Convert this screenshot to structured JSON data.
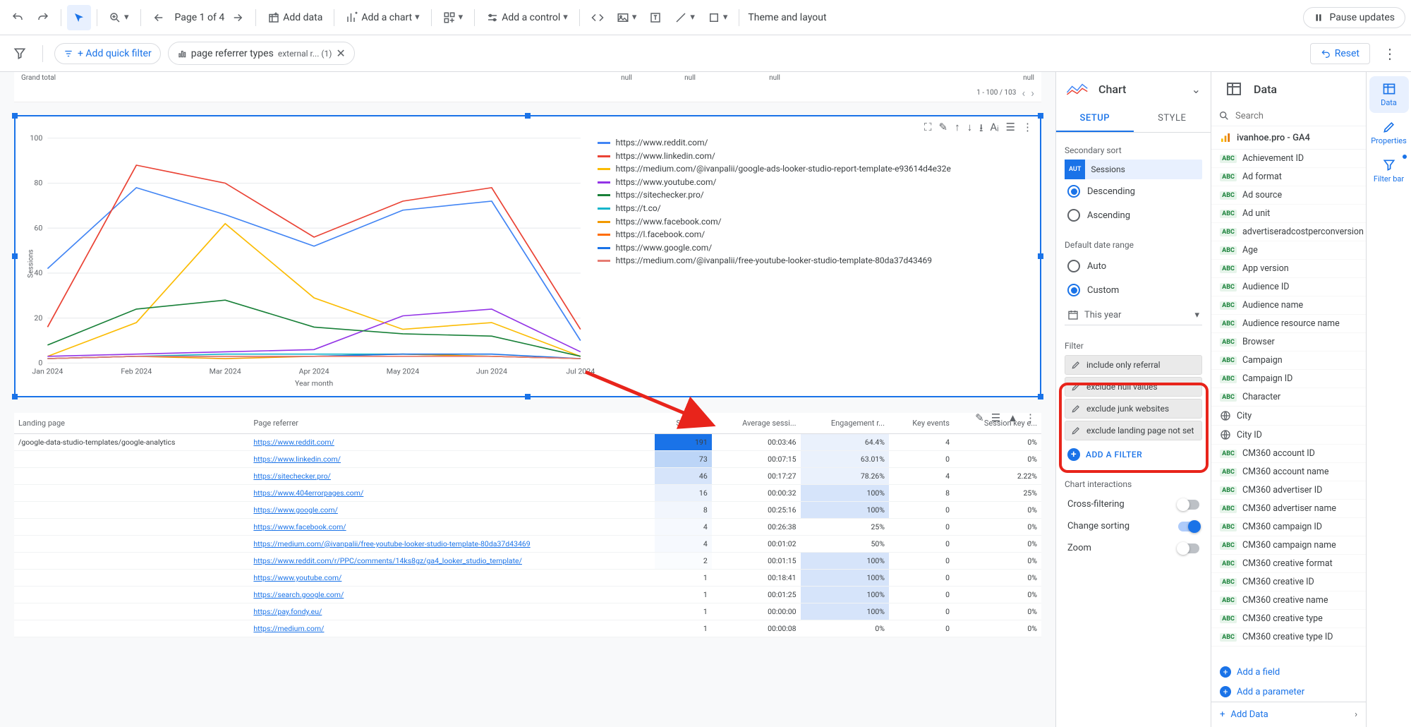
{
  "toolbar": {
    "page_label": "Page 1 of 4",
    "add_data": "Add data",
    "add_chart": "Add a chart",
    "add_control": "Add a control",
    "theme_layout": "Theme and layout",
    "pause_updates": "Pause updates"
  },
  "filter_bar": {
    "add_quick_filter": "+ Add quick filter",
    "active_filter_label": "page referrer types",
    "active_filter_suffix": "external r... (1)",
    "reset": "Reset"
  },
  "canvas": {
    "grand_total": "Grand total",
    "null_text": "null",
    "pagination": "1 - 100 / 103"
  },
  "chart": {
    "type": "line",
    "y_label": "Sessions",
    "x_label": "Year month",
    "x_categories": [
      "Jan 2024",
      "Feb 2024",
      "Mar 2024",
      "Apr 2024",
      "May 2024",
      "Jun 2024",
      "Jul 2024"
    ],
    "y_min": 0,
    "y_max": 100,
    "y_step": 20,
    "grid_color": "#e8eaed",
    "series": [
      {
        "color": "#4285f4",
        "label": "https://www.reddit.com/",
        "values": [
          42,
          78,
          66,
          52,
          68,
          72,
          10
        ]
      },
      {
        "color": "#ea4335",
        "label": "https://www.linkedin.com/",
        "values": [
          16,
          88,
          80,
          56,
          72,
          78,
          15
        ]
      },
      {
        "color": "#fbbc04",
        "label": "https://medium.com/@ivanpalii/google-ads-looker-studio-report-template-e93614d4e32e",
        "values": [
          3,
          18,
          62,
          29,
          15,
          18,
          3
        ]
      },
      {
        "color": "#9334e6",
        "label": "https://www.youtube.com/",
        "values": [
          3,
          4,
          5,
          6,
          21,
          24,
          5
        ]
      },
      {
        "color": "#188038",
        "label": "https://sitechecker.pro/",
        "values": [
          8,
          24,
          28,
          16,
          13,
          12,
          3
        ]
      },
      {
        "color": "#12b5cb",
        "label": "https://t.co/",
        "values": [
          2,
          3,
          4,
          4,
          4,
          3,
          2
        ]
      },
      {
        "color": "#f29900",
        "label": "https://www.facebook.com/",
        "values": [
          2,
          3,
          2,
          3,
          4,
          3,
          2
        ]
      },
      {
        "color": "#ff6d01",
        "label": "https://l.facebook.com/",
        "values": [
          2,
          3,
          3,
          3,
          3,
          3,
          2
        ]
      },
      {
        "color": "#1a73e8",
        "label": "https://www.google.com/",
        "values": [
          2,
          3,
          3,
          3,
          4,
          4,
          2
        ]
      },
      {
        "color": "#e67c73",
        "label": "https://medium.com/@ivanpalii/free-youtube-looker-studio-template-80da37d43469",
        "values": [
          2,
          3,
          3,
          3,
          3,
          3,
          2
        ]
      }
    ]
  },
  "table": {
    "columns": [
      "Landing page",
      "Page referrer",
      "Sessions",
      "Average sessi...",
      "Engagement r...",
      "Key events",
      "Session key e..."
    ],
    "landing_page_value": "/google-data-studio-templates/google-analytics",
    "rows": [
      {
        "ref": "https://www.reddit.com/",
        "sessions": 191,
        "avg": "00:03:46",
        "eng": "64.4%",
        "kev": 4,
        "ske": "0%",
        "heat": "#1a73e8"
      },
      {
        "ref": "https://www.linkedin.com/",
        "sessions": 73,
        "avg": "00:07:15",
        "eng": "63.01%",
        "kev": 0,
        "ske": "0%",
        "heat": "#bcd5f7"
      },
      {
        "ref": "https://sitechecker.pro/",
        "sessions": 46,
        "avg": "00:17:27",
        "eng": "78.26%",
        "kev": 4,
        "ske": "2.22%",
        "heat": "#d6e4fa"
      },
      {
        "ref": "https://www.404errorpages.com/",
        "sessions": 16,
        "avg": "00:00:32",
        "eng": "100%",
        "kev": 8,
        "ske": "25%",
        "heat": "#eaf1fc"
      },
      {
        "ref": "https://www.google.com/",
        "sessions": 8,
        "avg": "00:25:16",
        "eng": "100%",
        "kev": 0,
        "ske": "0%",
        "heat": "#f2f6fd"
      },
      {
        "ref": "https://www.facebook.com/",
        "sessions": 4,
        "avg": "00:26:38",
        "eng": "25%",
        "kev": 0,
        "ske": "0%",
        "heat": "#f6f9fe"
      },
      {
        "ref": "https://medium.com/@ivanpalii/free-youtube-looker-studio-template-80da37d43469",
        "sessions": 4,
        "avg": "00:01:02",
        "eng": "50%",
        "kev": 0,
        "ske": "0%",
        "heat": "#f6f9fe"
      },
      {
        "ref": "https://www.reddit.com/r/PPC/comments/14ks8gz/ga4_looker_studio_template/",
        "sessions": 2,
        "avg": "00:01:15",
        "eng": "100%",
        "kev": 0,
        "ske": "0%",
        "heat": "#fafcfe"
      },
      {
        "ref": "https://www.youtube.com/",
        "sessions": 1,
        "avg": "00:18:41",
        "eng": "100%",
        "kev": 0,
        "ske": "0%",
        "heat": "#ffffff"
      },
      {
        "ref": "https://search.google.com/",
        "sessions": 1,
        "avg": "00:01:25",
        "eng": "100%",
        "kev": 0,
        "ske": "0%",
        "heat": "#ffffff"
      },
      {
        "ref": "https://pay.fondy.eu/",
        "sessions": 1,
        "avg": "00:00:00",
        "eng": "100%",
        "kev": 0,
        "ske": "0%",
        "heat": "#ffffff"
      },
      {
        "ref": "https://medium.com/",
        "sessions": 1,
        "avg": "00:00:08",
        "eng": "0%",
        "kev": 0,
        "ske": "0%",
        "heat": "#ffffff"
      }
    ]
  },
  "panel_chart": {
    "title": "Chart",
    "tab_setup": "SETUP",
    "tab_style": "STYLE",
    "secondary_sort": "Secondary sort",
    "sort_field_type": "AUT",
    "sort_field_name": "Sessions",
    "descending": "Descending",
    "ascending": "Ascending",
    "default_date_range": "Default date range",
    "auto": "Auto",
    "custom": "Custom",
    "date_value": "This year",
    "filter": "Filter",
    "filters": [
      "include only referral",
      "exclude null values",
      "exclude junk websites",
      "exclude landing page not set"
    ],
    "add_a_filter": "ADD A FILTER",
    "chart_interactions": "Chart interactions",
    "cross_filtering": "Cross-filtering",
    "change_sorting": "Change sorting",
    "zoom": "Zoom"
  },
  "panel_data": {
    "title": "Data",
    "search_placeholder": "Search",
    "datasource": "ivanhoe.pro - GA4",
    "fields": [
      {
        "t": "abc",
        "n": "Achievement ID"
      },
      {
        "t": "abc",
        "n": "Ad format"
      },
      {
        "t": "abc",
        "n": "Ad source"
      },
      {
        "t": "abc",
        "n": "Ad unit"
      },
      {
        "t": "abc",
        "n": "advertiseradcostperconversion"
      },
      {
        "t": "abc",
        "n": "Age"
      },
      {
        "t": "abc",
        "n": "App version"
      },
      {
        "t": "abc",
        "n": "Audience ID"
      },
      {
        "t": "abc",
        "n": "Audience name"
      },
      {
        "t": "abc",
        "n": "Audience resource name"
      },
      {
        "t": "abc",
        "n": "Browser"
      },
      {
        "t": "abc",
        "n": "Campaign"
      },
      {
        "t": "abc",
        "n": "Campaign ID"
      },
      {
        "t": "abc",
        "n": "Character"
      },
      {
        "t": "geo",
        "n": "City"
      },
      {
        "t": "geo",
        "n": "City ID"
      },
      {
        "t": "abc",
        "n": "CM360 account ID"
      },
      {
        "t": "abc",
        "n": "CM360 account name"
      },
      {
        "t": "abc",
        "n": "CM360 advertiser ID"
      },
      {
        "t": "abc",
        "n": "CM360 advertiser name"
      },
      {
        "t": "abc",
        "n": "CM360 campaign ID"
      },
      {
        "t": "abc",
        "n": "CM360 campaign name"
      },
      {
        "t": "abc",
        "n": "CM360 creative format"
      },
      {
        "t": "abc",
        "n": "CM360 creative ID"
      },
      {
        "t": "abc",
        "n": "CM360 creative name"
      },
      {
        "t": "abc",
        "n": "CM360 creative type"
      },
      {
        "t": "abc",
        "n": "CM360 creative type ID"
      }
    ],
    "add_a_field": "Add a field",
    "add_a_parameter": "Add a parameter",
    "add_data": "Add Data"
  },
  "rail": {
    "data": "Data",
    "properties": "Properties",
    "filter_bar": "Filter bar"
  }
}
